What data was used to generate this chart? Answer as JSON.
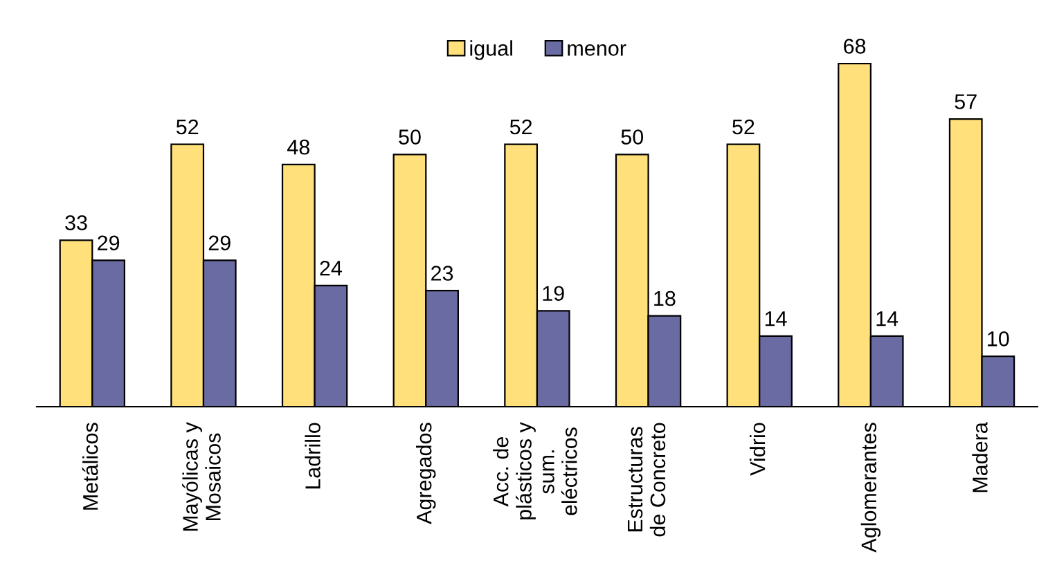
{
  "chart_data": {
    "type": "bar",
    "categories": [
      "Metálicos",
      "Mayólicas y\nMosaicos",
      "Ladrillo",
      "Agregados",
      "Acc. de\nplásticos y\nsum.\neléctricos",
      "Estructuras\nde Concreto",
      "Vidrio",
      "Aglomerantes",
      "Madera"
    ],
    "series": [
      {
        "name": "igual",
        "color": "#ffe07a",
        "values": [
          33,
          52,
          48,
          50,
          52,
          50,
          52,
          68,
          57
        ]
      },
      {
        "name": "menor",
        "color": "#6b6ba3",
        "values": [
          29,
          29,
          24,
          23,
          19,
          18,
          14,
          14,
          10
        ]
      }
    ],
    "data_labels": true,
    "legend": "top",
    "grid": false
  }
}
